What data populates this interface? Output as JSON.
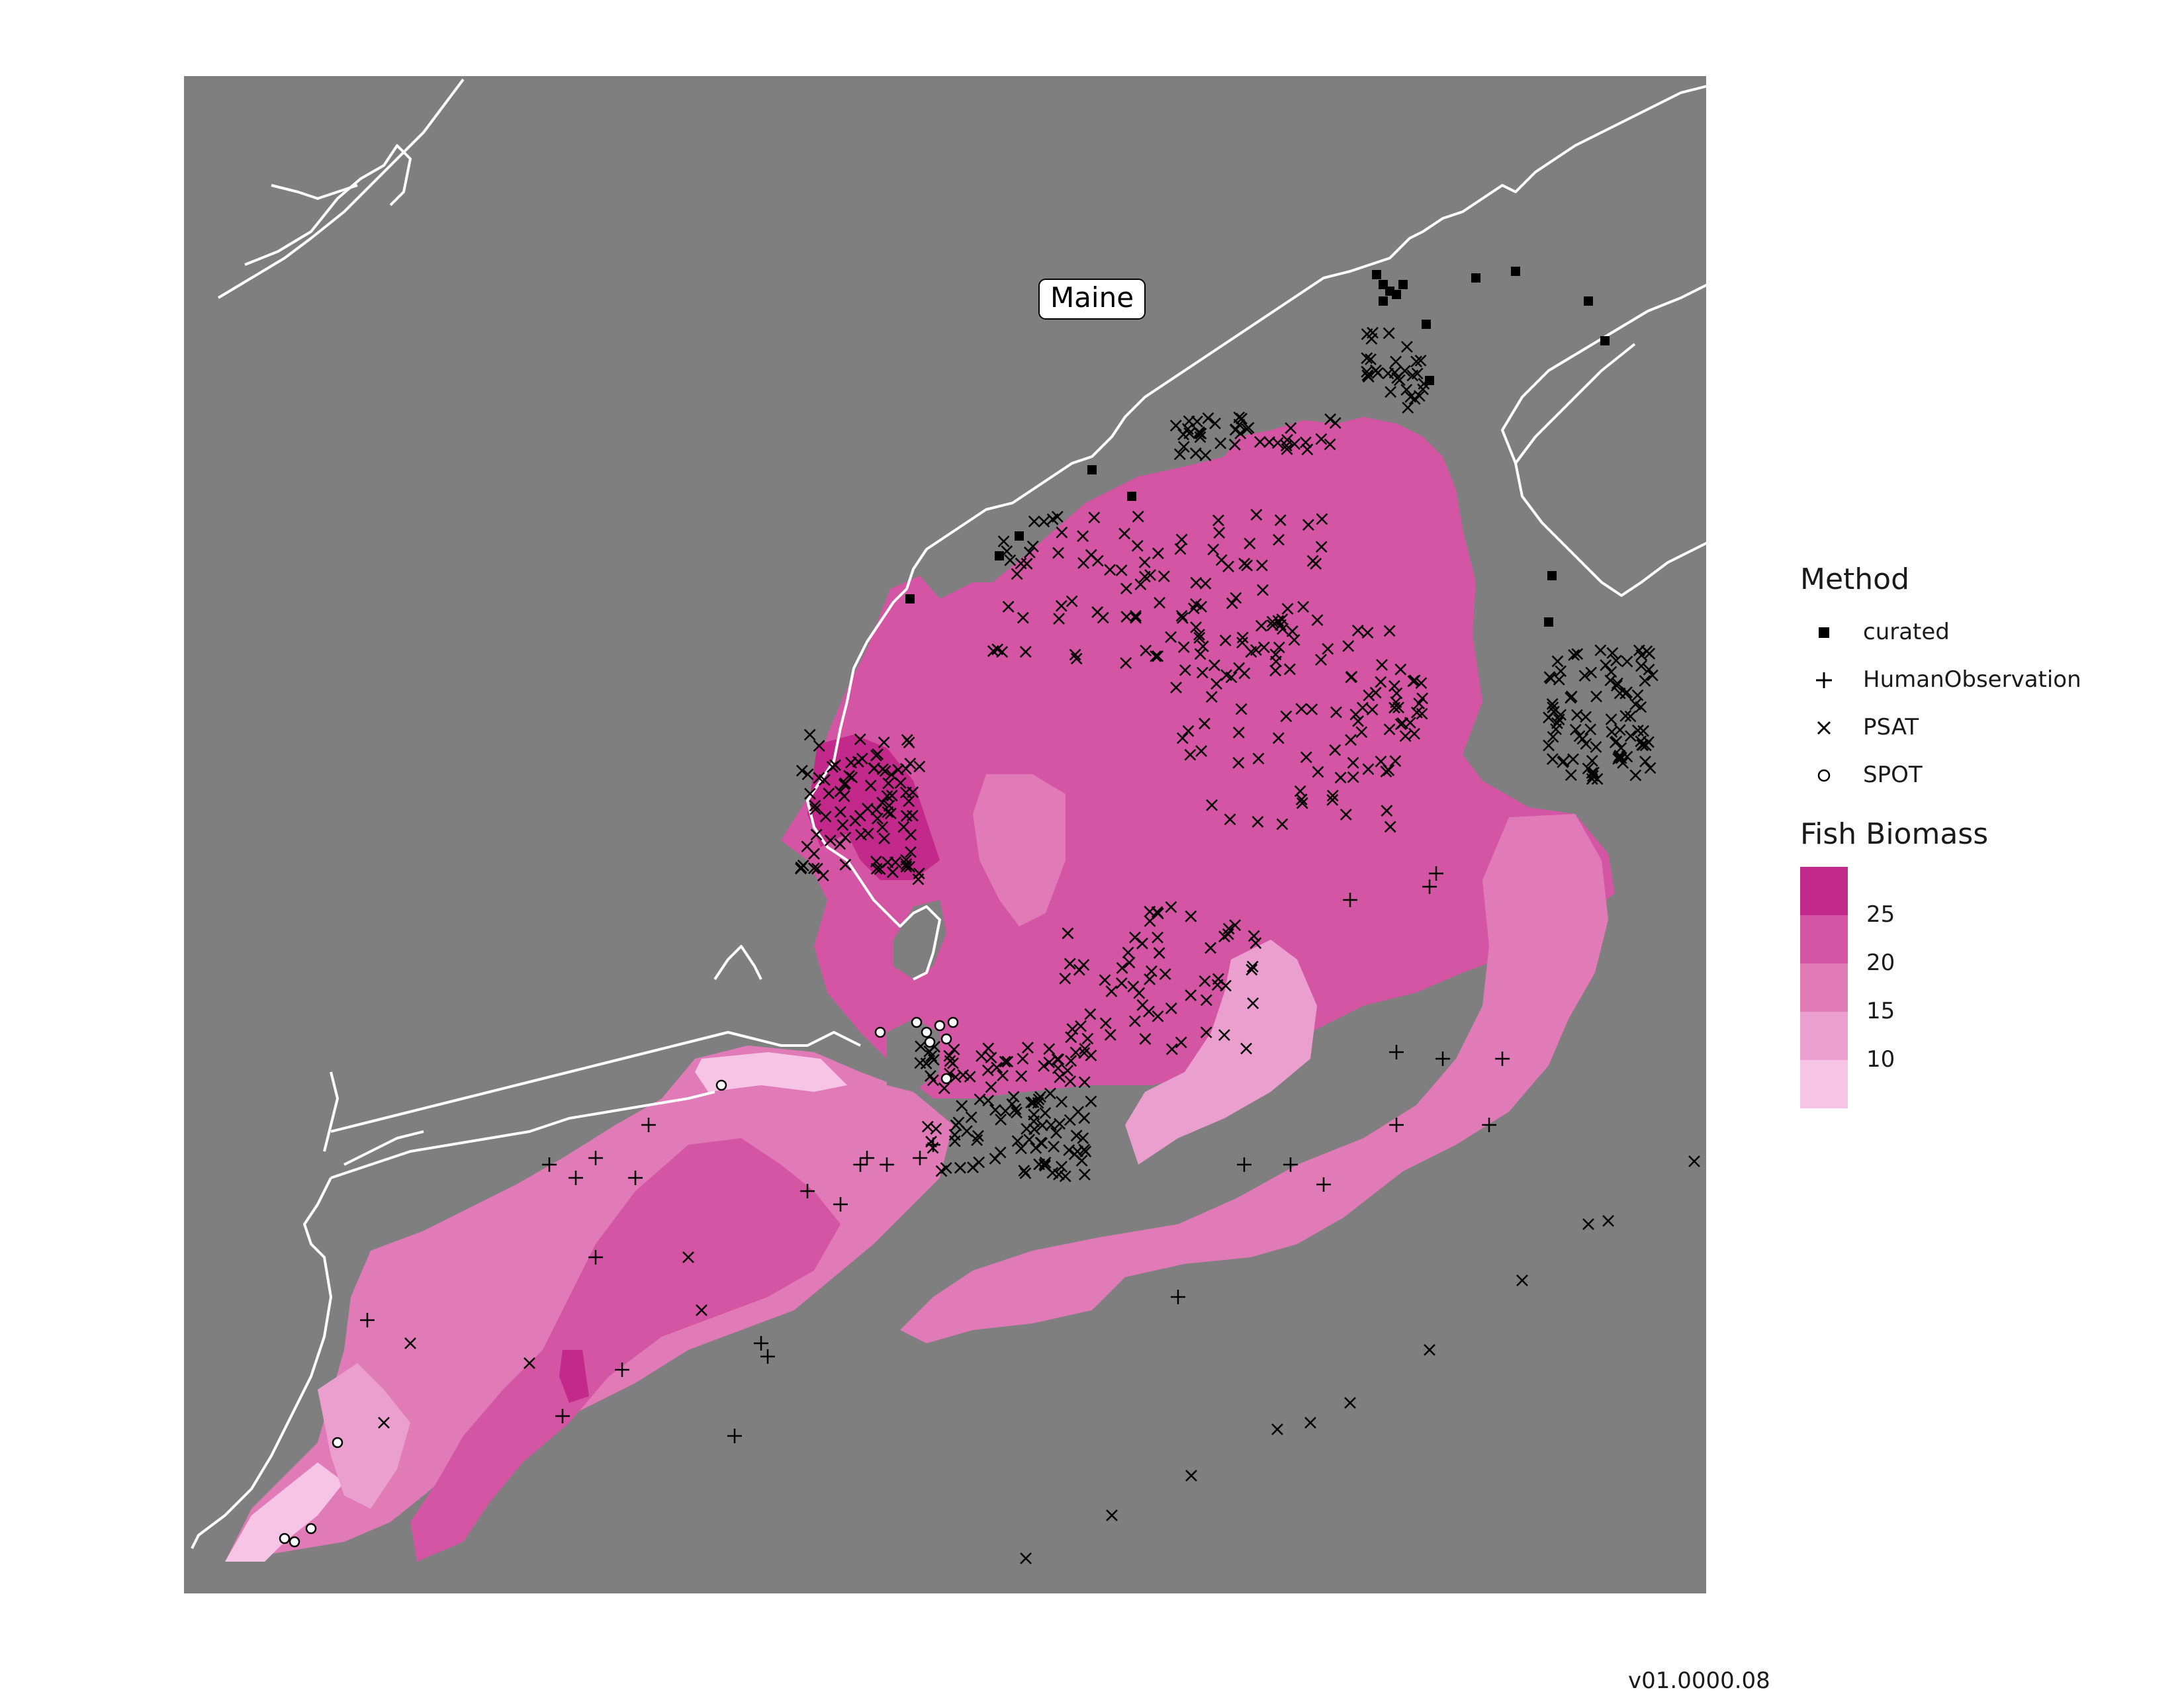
{
  "map": {
    "place_label": "Maine",
    "background_color": "#7f7f7f",
    "coastline_color": "#ffffff"
  },
  "legend": {
    "method": {
      "title": "Method",
      "items": [
        {
          "label": "curated",
          "symbol": "filled-square"
        },
        {
          "label": "HumanObservation",
          "symbol": "plus"
        },
        {
          "label": "PSAT",
          "symbol": "cross"
        },
        {
          "label": "SPOT",
          "symbol": "open-circle"
        }
      ]
    },
    "biomass": {
      "title": "Fish Biomass",
      "breaks": [
        "25",
        "20",
        "15",
        "10"
      ],
      "colors": [
        "#c2298a",
        "#d455a3",
        "#e07bb8",
        "#eb9fcf",
        "#f6c4e5"
      ]
    }
  },
  "footer": {
    "version": "v01.0000.08"
  }
}
